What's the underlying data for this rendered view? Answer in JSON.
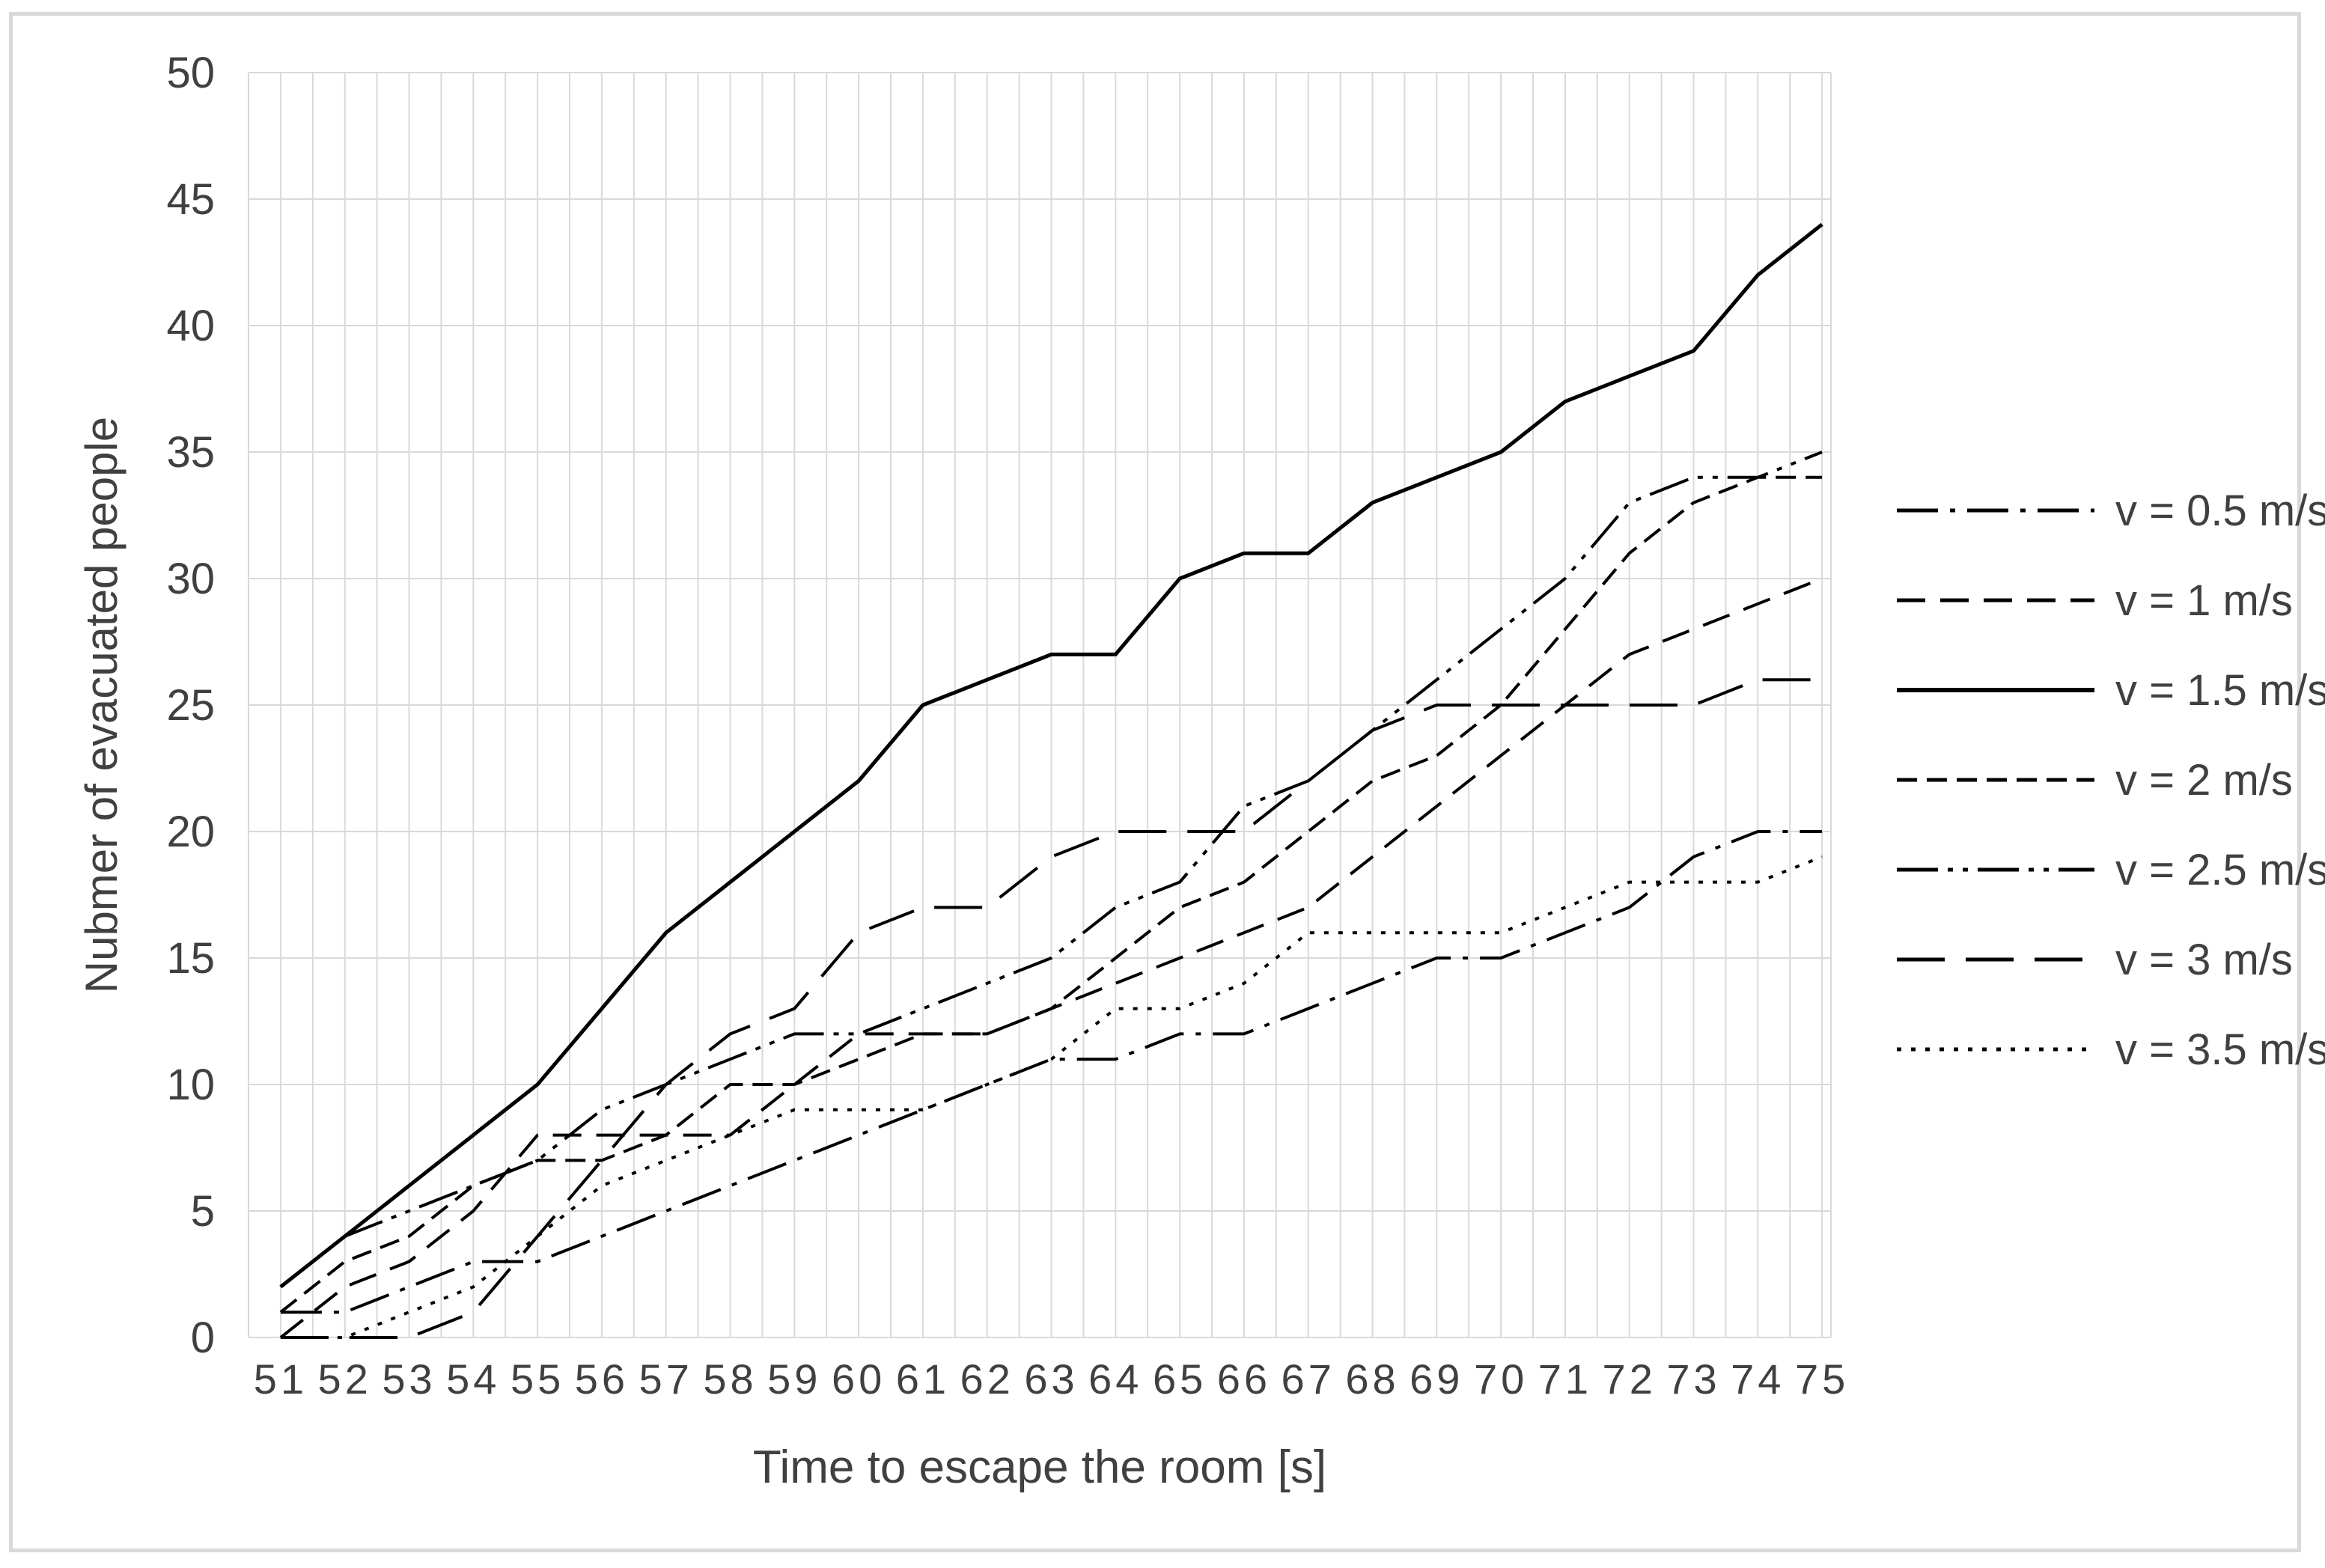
{
  "frame": {
    "background": "#ffffff",
    "border_color": "#d9d9d9"
  },
  "chart_data": {
    "type": "line",
    "title": "",
    "xlabel": "Time to escape the room [s]",
    "ylabel": "Nubmer of evacuated people",
    "x": [
      51,
      52,
      53,
      54,
      55,
      56,
      57,
      58,
      59,
      60,
      61,
      62,
      63,
      64,
      65,
      66,
      67,
      68,
      69,
      70,
      71,
      72,
      73,
      74,
      75
    ],
    "ylim": [
      0,
      50
    ],
    "ytick_step": 5,
    "yticks": [
      0,
      5,
      10,
      15,
      20,
      25,
      30,
      35,
      40,
      45,
      50
    ],
    "grid": true,
    "grid_color": "#d9d9d9",
    "minor_x_grid_step": 0.5,
    "legend_position": "right",
    "line_color": "#000000",
    "text_color": "#404040",
    "series": [
      {
        "name": "v = 0.5 m/s",
        "style": "dash-dot",
        "dash": "55 16 7 16",
        "width": 4,
        "values": [
          1,
          1,
          2,
          3,
          3,
          4,
          5,
          6,
          7,
          8,
          9,
          10,
          11,
          11,
          12,
          12,
          13,
          14,
          15,
          15,
          16,
          17,
          19,
          20,
          20
        ]
      },
      {
        "name": "v = 1 m/s",
        "style": "dashed",
        "dash": "38 20",
        "width": 4,
        "values": [
          0,
          2,
          3,
          5,
          8,
          8,
          8,
          8,
          10,
          12,
          12,
          12,
          13,
          14,
          15,
          16,
          17,
          19,
          21,
          23,
          25,
          27,
          28,
          29,
          30
        ]
      },
      {
        "name": "v = 1.5 m/s",
        "style": "solid",
        "dash": "",
        "width": 5,
        "values": [
          2,
          4,
          6,
          8,
          10,
          13,
          16,
          18,
          20,
          22,
          25,
          26,
          27,
          27,
          30,
          31,
          31,
          33,
          34,
          35,
          37,
          38,
          39,
          42,
          44
        ]
      },
      {
        "name": "v = 2 m/s",
        "style": "dense-dash",
        "dash": "27 13",
        "width": 4,
        "values": [
          1,
          3,
          4,
          6,
          7,
          7,
          8,
          10,
          10,
          11,
          12,
          12,
          13,
          15,
          17,
          18,
          20,
          22,
          23,
          25,
          28,
          31,
          33,
          34,
          34
        ]
      },
      {
        "name": "v = 2.5 m/s",
        "style": "dash-dot-dot",
        "dash": "55 13 7 13 7 13",
        "width": 4,
        "values": [
          2,
          4,
          5,
          6,
          7,
          9,
          10,
          11,
          12,
          12,
          13,
          14,
          15,
          17,
          18,
          21,
          22,
          24,
          26,
          28,
          30,
          33,
          34,
          34,
          35
        ]
      },
      {
        "name": "v = 3 m/s",
        "style": "long-dash",
        "dash": "64 28",
        "width": 4,
        "values": [
          0,
          0,
          0,
          1,
          4,
          7,
          10,
          12,
          13,
          16,
          17,
          17,
          19,
          20,
          20,
          20,
          22,
          24,
          25,
          25,
          25,
          25,
          25,
          26,
          26
        ]
      },
      {
        "name": "v = 3.5 m/s",
        "style": "dotted",
        "dash": "6 13",
        "width": 4,
        "values": [
          0,
          0,
          1,
          2,
          4,
          6,
          7,
          8,
          9,
          9,
          9,
          10,
          11,
          13,
          13,
          14,
          16,
          16,
          16,
          16,
          17,
          18,
          18,
          18,
          19
        ]
      }
    ]
  },
  "layout_text": {
    "note": ""
  }
}
